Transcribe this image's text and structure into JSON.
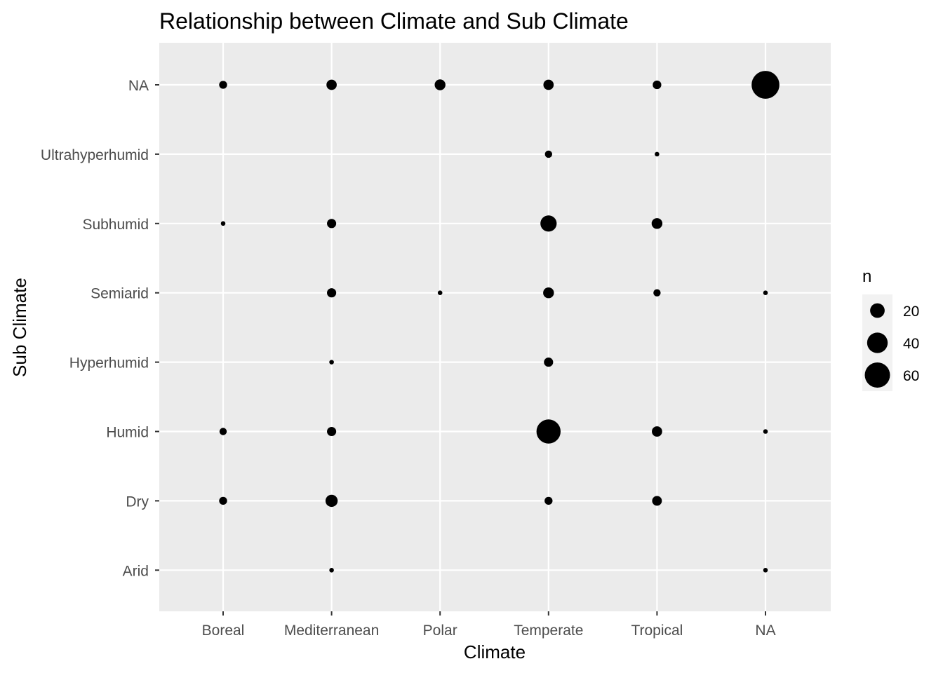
{
  "chart_data": {
    "type": "scatter",
    "title": "Relationship between Climate and Sub Climate",
    "xlabel": "Climate",
    "ylabel": "Sub Climate",
    "categories_x": [
      "Boreal",
      "Mediterranean",
      "Polar",
      "Temperate",
      "Tropical",
      "NA"
    ],
    "categories_y": [
      "Arid",
      "Dry",
      "Humid",
      "Hyperhumid",
      "Semiarid",
      "Subhumid",
      "Ultrahyperhumid",
      "NA"
    ],
    "size_variable": "n",
    "grid": true,
    "legend_position": "right",
    "legend": {
      "title": "n",
      "entries": [
        {
          "label": "20",
          "value": 20
        },
        {
          "label": "40",
          "value": 40
        },
        {
          "label": "60",
          "value": 60
        }
      ]
    },
    "points": [
      {
        "x": "Boreal",
        "y": "NA",
        "n": 6
      },
      {
        "x": "Mediterranean",
        "y": "NA",
        "n": 10
      },
      {
        "x": "Polar",
        "y": "NA",
        "n": 11
      },
      {
        "x": "Temperate",
        "y": "NA",
        "n": 10
      },
      {
        "x": "Tropical",
        "y": "NA",
        "n": 7
      },
      {
        "x": "NA",
        "y": "NA",
        "n": 73
      },
      {
        "x": "Temperate",
        "y": "Ultrahyperhumid",
        "n": 5
      },
      {
        "x": "Tropical",
        "y": "Ultrahyperhumid",
        "n": 2
      },
      {
        "x": "Boreal",
        "y": "Subhumid",
        "n": 2
      },
      {
        "x": "Mediterranean",
        "y": "Subhumid",
        "n": 8
      },
      {
        "x": "Temperate",
        "y": "Subhumid",
        "n": 25
      },
      {
        "x": "Tropical",
        "y": "Subhumid",
        "n": 11
      },
      {
        "x": "Mediterranean",
        "y": "Semiarid",
        "n": 8
      },
      {
        "x": "Polar",
        "y": "Semiarid",
        "n": 2
      },
      {
        "x": "Temperate",
        "y": "Semiarid",
        "n": 11
      },
      {
        "x": "Tropical",
        "y": "Semiarid",
        "n": 5
      },
      {
        "x": "NA",
        "y": "Semiarid",
        "n": 2
      },
      {
        "x": "Mediterranean",
        "y": "Hyperhumid",
        "n": 2
      },
      {
        "x": "Temperate",
        "y": "Hyperhumid",
        "n": 8
      },
      {
        "x": "Boreal",
        "y": "Humid",
        "n": 5
      },
      {
        "x": "Mediterranean",
        "y": "Humid",
        "n": 8
      },
      {
        "x": "Temperate",
        "y": "Humid",
        "n": 55
      },
      {
        "x": "Tropical",
        "y": "Humid",
        "n": 10
      },
      {
        "x": "NA",
        "y": "Humid",
        "n": 2
      },
      {
        "x": "Boreal",
        "y": "Dry",
        "n": 6
      },
      {
        "x": "Mediterranean",
        "y": "Dry",
        "n": 14
      },
      {
        "x": "Temperate",
        "y": "Dry",
        "n": 6
      },
      {
        "x": "Tropical",
        "y": "Dry",
        "n": 9
      },
      {
        "x": "Mediterranean",
        "y": "Arid",
        "n": 2
      },
      {
        "x": "NA",
        "y": "Arid",
        "n": 2
      }
    ],
    "colors": {
      "panel_background": "#ebebeb",
      "grid": "#ffffff",
      "point": "#000000",
      "tick_text": "#4d4d4d",
      "tick_mark": "#333333"
    }
  }
}
